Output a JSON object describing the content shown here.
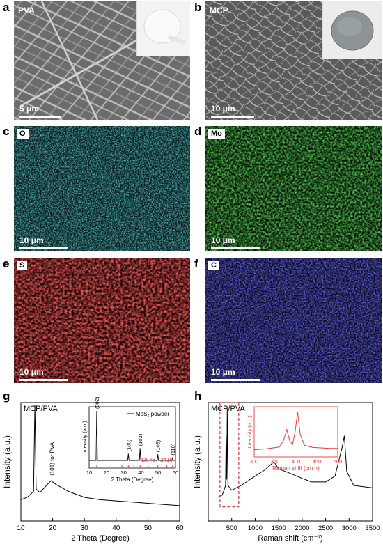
{
  "panels": {
    "a": {
      "letter": "a",
      "label": "PVA",
      "scale": "5 μm"
    },
    "b": {
      "letter": "b",
      "label": "MCP",
      "scale": "10 μm"
    },
    "c": {
      "letter": "c",
      "label": "O",
      "scale": "10 μm",
      "color": "#23c8c8"
    },
    "d": {
      "letter": "d",
      "label": "Mo",
      "scale": "10 μm",
      "color": "#22d422"
    },
    "e": {
      "letter": "e",
      "label": "S",
      "scale": "10 μm",
      "color": "#e41c1c"
    },
    "f": {
      "letter": "f",
      "label": "C",
      "scale": "10 μm",
      "color": "#2a2ae0"
    },
    "g": {
      "letter": "g"
    },
    "h": {
      "letter": "h"
    }
  },
  "chart_data": [
    {
      "type": "line",
      "panel": "g",
      "title": "MCP/PVA",
      "xlabel": "2 Theta (Degree)",
      "ylabel": "Intensity (a.u.)",
      "xlim": [
        10,
        60
      ],
      "xticks": [
        10,
        20,
        30,
        40,
        50,
        60
      ],
      "annotation": "(101) for PVA",
      "series": [
        {
          "x": [
            10,
            12,
            14,
            14.4,
            14.8,
            16,
            18,
            19.5,
            21,
            25,
            30,
            35,
            40,
            45,
            50,
            55,
            60
          ],
          "y": [
            0.18,
            0.2,
            0.25,
            0.98,
            0.27,
            0.24,
            0.3,
            0.34,
            0.31,
            0.25,
            0.2,
            0.18,
            0.17,
            0.16,
            0.15,
            0.14,
            0.13
          ]
        }
      ],
      "inset": {
        "legend": "MoS₂ powder",
        "ylabel": "Intensity (a.u.)",
        "xlabel": "2 Theta (Degree)",
        "xticks": [
          10,
          20,
          30,
          40,
          50,
          60
        ],
        "xlim": [
          10,
          60
        ],
        "reference": "PDF#87-2416",
        "peaks": [
          {
            "x": 14.4,
            "label": "(002)",
            "y": 1.0
          },
          {
            "x": 32.7,
            "label": "(100)",
            "y": 0.17
          },
          {
            "x": 39.5,
            "label": "(103)",
            "y": 0.28
          },
          {
            "x": 49.8,
            "label": "(105)",
            "y": 0.16
          },
          {
            "x": 58.3,
            "label": "(110)",
            "y": 0.1
          }
        ],
        "ref_lines": [
          14.4,
          29,
          32.7,
          33.5,
          35.9,
          39.5,
          44.2,
          49.8,
          55,
          58.3
        ]
      }
    },
    {
      "type": "line",
      "panel": "h",
      "title": "MCP/PVA",
      "xlabel": "Raman shift (cm⁻¹)",
      "ylabel": "Intensity (a.u.)",
      "xlim": [
        0,
        3500
      ],
      "xticks": [
        500,
        1000,
        1500,
        2000,
        2500,
        3000,
        3500
      ],
      "series": [
        {
          "x": [
            200,
            300,
            370,
            380,
            395,
            405,
            420,
            500,
            700,
            1000,
            1200,
            1400,
            1500,
            1700,
            2000,
            2200,
            2500,
            2700,
            2850,
            2900,
            2950,
            3100,
            3500
          ],
          "y": [
            0.2,
            0.22,
            0.3,
            0.72,
            0.35,
            0.95,
            0.3,
            0.26,
            0.3,
            0.38,
            0.43,
            0.5,
            0.44,
            0.41,
            0.36,
            0.33,
            0.33,
            0.38,
            0.62,
            0.72,
            0.42,
            0.3,
            0.28
          ]
        }
      ],
      "inset": {
        "ylabel": "Intensity (a.u.)",
        "xlabel": "Raman shift (cm⁻¹)",
        "xlim": [
          300,
          500
        ],
        "xticks": [
          300,
          350,
          400,
          450,
          500
        ],
        "series": [
          {
            "x": [
              300,
              330,
              360,
              370,
              378,
              385,
              392,
              398,
              404,
              410,
              420,
              440,
              460,
              480,
              500
            ],
            "y": [
              0.1,
              0.12,
              0.16,
              0.3,
              0.55,
              0.3,
              0.22,
              0.5,
              0.95,
              0.45,
              0.2,
              0.15,
              0.14,
              0.13,
              0.13
            ]
          }
        ]
      }
    }
  ]
}
